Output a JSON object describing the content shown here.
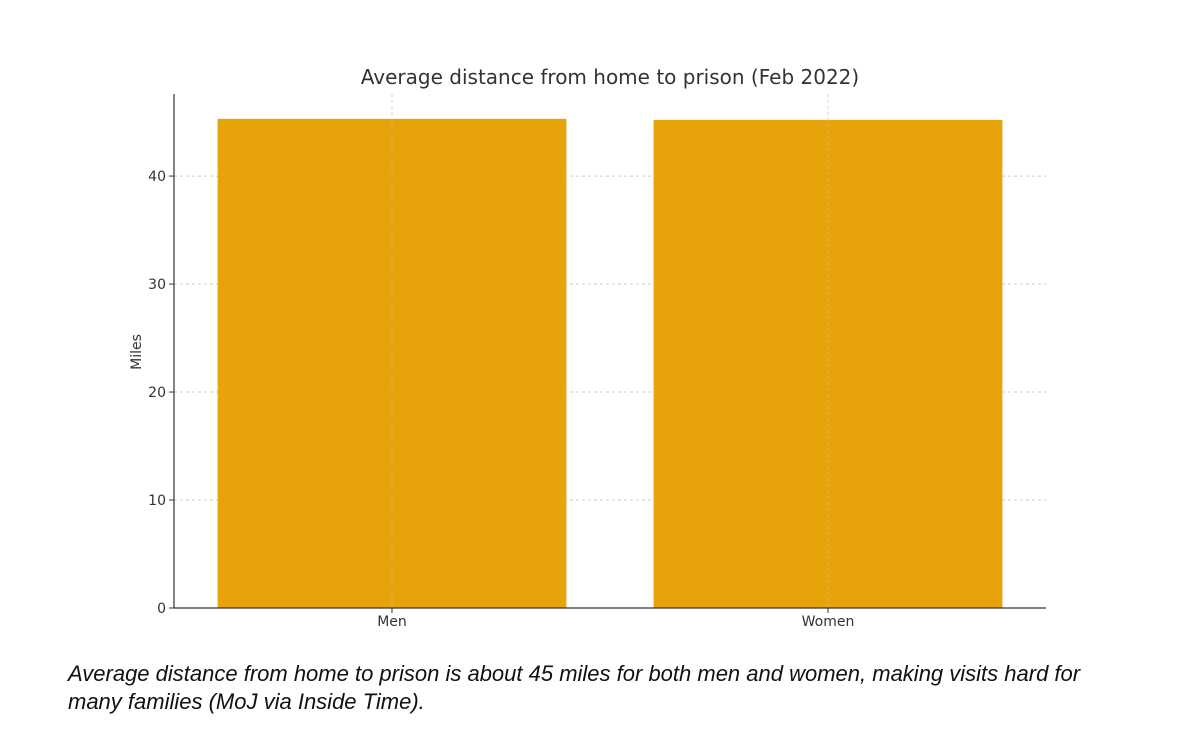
{
  "chart_data": {
    "type": "bar",
    "title": "Average distance from home to prison (Feb 2022)",
    "xlabel": "",
    "ylabel": "Miles",
    "categories": [
      "Men",
      "Women"
    ],
    "values": [
      45.3,
      45.2
    ],
    "ylim": [
      0,
      47.6
    ],
    "yticks": [
      0,
      10,
      20,
      30,
      40
    ],
    "bar_color": "#e69f00",
    "grid": true
  },
  "caption": "Average distance from home to prison is about 45 miles for both men and women, making visits hard for many families (MoJ via Inside Time)."
}
